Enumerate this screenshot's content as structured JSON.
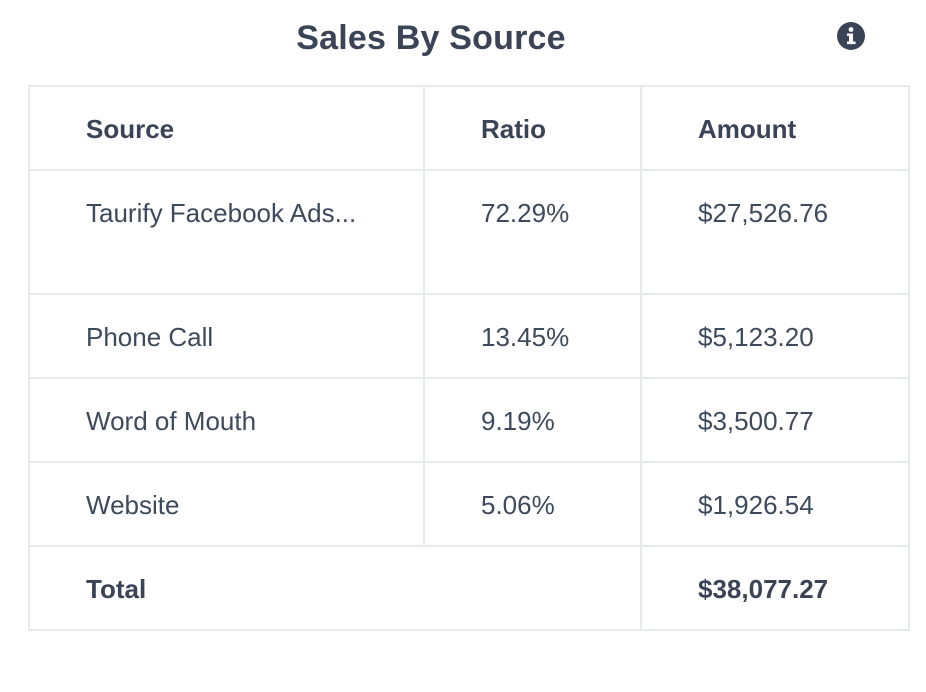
{
  "widget": {
    "title": "Sales By Source",
    "info_icon": "info-circle-icon"
  },
  "table": {
    "headers": {
      "source": "Source",
      "ratio": "Ratio",
      "amount": "Amount"
    },
    "rows": [
      {
        "source": "Taurify Facebook Ads...",
        "ratio": "72.29%",
        "amount": "$27,526.76"
      },
      {
        "source": "Phone Call",
        "ratio": "13.45%",
        "amount": "$5,123.20"
      },
      {
        "source": "Word of Mouth",
        "ratio": "9.19%",
        "amount": "$3,500.77"
      },
      {
        "source": "Website",
        "ratio": "5.06%",
        "amount": "$1,926.54"
      }
    ],
    "total": {
      "label": "Total",
      "amount": "$38,077.27"
    }
  },
  "colors": {
    "text": "#3d4a5c",
    "heading": "#3b4456",
    "border": "#e6eaef",
    "background": "#ffffff"
  }
}
